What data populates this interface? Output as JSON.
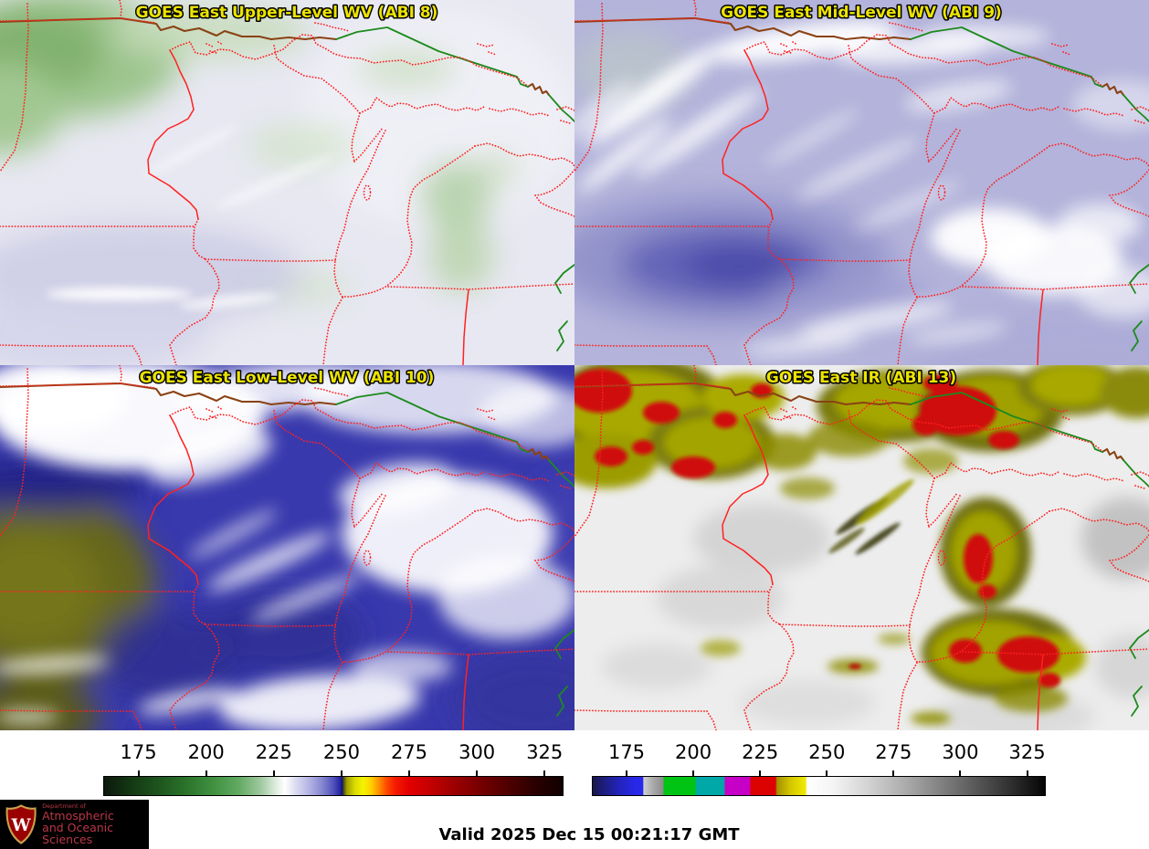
{
  "panels": [
    {
      "title": "GOES East Upper-Level WV (ABI 8)"
    },
    {
      "title": "GOES East Mid-Level WV (ABI 9)"
    },
    {
      "title": "GOES East Low-Level WV (ABI 10)"
    },
    {
      "title": "GOES East IR (ABI 13)"
    }
  ],
  "colorbars": [
    {
      "name": "water-vapor-brightness-temperature-colorbar",
      "ticks": [
        175,
        200,
        225,
        250,
        275,
        300,
        325
      ],
      "range": [
        162,
        332
      ],
      "stops": [
        [
          162,
          "#0b190b"
        ],
        [
          172,
          "#143814"
        ],
        [
          182,
          "#1d541d"
        ],
        [
          192,
          "#2a722a"
        ],
        [
          202,
          "#3f8f3f"
        ],
        [
          212,
          "#62aa62"
        ],
        [
          220,
          "#9fc89f"
        ],
        [
          226,
          "#e2eee2"
        ],
        [
          229,
          "#ffffff"
        ],
        [
          233,
          "#dcdcf0"
        ],
        [
          238,
          "#b4b4e4"
        ],
        [
          243,
          "#8484d0"
        ],
        [
          247,
          "#5252bc"
        ],
        [
          249.5,
          "#2626a2"
        ],
        [
          250.2,
          "#10107e"
        ],
        [
          250.8,
          "#4c4c10"
        ],
        [
          252,
          "#a0a000"
        ],
        [
          255,
          "#dcdc00"
        ],
        [
          258,
          "#f4f400"
        ],
        [
          261,
          "#ffd000"
        ],
        [
          264,
          "#ff8c00"
        ],
        [
          267,
          "#ff4600"
        ],
        [
          270,
          "#f51a00"
        ],
        [
          275,
          "#e30000"
        ],
        [
          283,
          "#c30000"
        ],
        [
          292,
          "#9c0000"
        ],
        [
          302,
          "#740000"
        ],
        [
          312,
          "#4e0000"
        ],
        [
          322,
          "#2a0000"
        ],
        [
          332,
          "#100000"
        ]
      ]
    },
    {
      "name": "infrared-brightness-temperature-colorbar",
      "ticks": [
        175,
        200,
        225,
        250,
        275,
        300,
        325
      ],
      "range": [
        162,
        332
      ],
      "stops": [
        [
          162,
          "#17174b"
        ],
        [
          167,
          "#1e1e85"
        ],
        [
          172,
          "#2323bd"
        ],
        [
          178,
          "#2828e8"
        ],
        [
          180.8,
          "#2929ee"
        ],
        [
          181.2,
          "#cfcfcf"
        ],
        [
          184.5,
          "#ababab"
        ],
        [
          188.4,
          "#8c8c8c"
        ],
        [
          188.8,
          "#00c414"
        ],
        [
          200.4,
          "#00c414"
        ],
        [
          201.0,
          "#00a8a8"
        ],
        [
          211.3,
          "#00a8a8"
        ],
        [
          211.9,
          "#c600c6"
        ],
        [
          220.9,
          "#c600c6"
        ],
        [
          221.5,
          "#dd0202"
        ],
        [
          230.7,
          "#dd0202"
        ],
        [
          231.3,
          "#a39000"
        ],
        [
          236,
          "#d2c400"
        ],
        [
          242.0,
          "#f0ea00"
        ],
        [
          242.6,
          "#ffffff"
        ],
        [
          252,
          "#f5f5f5"
        ],
        [
          264,
          "#d7d7d7"
        ],
        [
          278,
          "#b0b0b0"
        ],
        [
          292,
          "#848484"
        ],
        [
          306,
          "#585858"
        ],
        [
          320,
          "#2d2d2d"
        ],
        [
          332,
          "#050505"
        ]
      ]
    }
  ],
  "footer": {
    "valid_text": "Valid 2025 Dec 15 00:21:17 GMT"
  },
  "logo": {
    "department": "Department of",
    "name_line1": "Atmospheric",
    "name_line2": "and Oceanic Sciences",
    "crest_letter": "W"
  },
  "colors": {
    "panel_title": "#ece400",
    "state_border": "#ff2121",
    "canada_border": "#8a4213",
    "lake_border": "#1d8a1d",
    "logo_text": "#bb3747",
    "logo_bg": "#000000"
  }
}
